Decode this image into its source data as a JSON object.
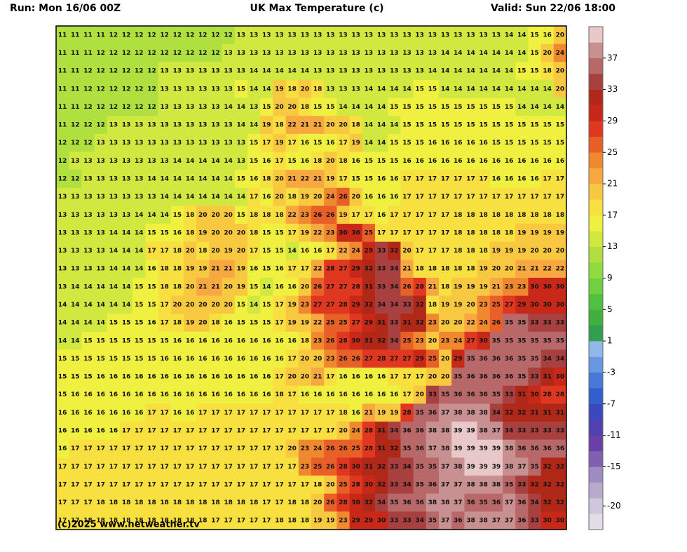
{
  "map": {
    "run": "Run: Mon 16/06 00Z",
    "title": "UK Max Temperature (c)",
    "valid": "Valid: Sun 22/06 18:00",
    "credit": "(c)2025 www.netweather.tv",
    "grid": [
      [
        11,
        11,
        11,
        11,
        12,
        12,
        12,
        12,
        12,
        12,
        12,
        12,
        12,
        12,
        13,
        13,
        13,
        13,
        13,
        13,
        13,
        13,
        13,
        13,
        13,
        13,
        13,
        13,
        13,
        13,
        13,
        13,
        13,
        13,
        13,
        14,
        14,
        15,
        16,
        20
      ],
      [
        11,
        11,
        11,
        12,
        12,
        12,
        12,
        12,
        12,
        12,
        12,
        12,
        12,
        13,
        13,
        13,
        13,
        13,
        13,
        13,
        13,
        13,
        13,
        13,
        13,
        13,
        13,
        13,
        13,
        13,
        14,
        14,
        14,
        14,
        14,
        14,
        14,
        15,
        20,
        24
      ],
      [
        11,
        11,
        12,
        12,
        12,
        12,
        12,
        12,
        13,
        13,
        13,
        13,
        13,
        13,
        13,
        14,
        14,
        14,
        14,
        14,
        13,
        13,
        13,
        13,
        13,
        13,
        13,
        13,
        13,
        14,
        14,
        14,
        14,
        14,
        14,
        14,
        15,
        15,
        18,
        20
      ],
      [
        11,
        11,
        12,
        12,
        12,
        12,
        12,
        12,
        13,
        13,
        13,
        13,
        13,
        13,
        15,
        14,
        14,
        19,
        18,
        20,
        18,
        13,
        13,
        13,
        14,
        14,
        14,
        14,
        15,
        15,
        14,
        14,
        14,
        14,
        14,
        14,
        14,
        14,
        14,
        20
      ],
      [
        11,
        11,
        12,
        12,
        12,
        12,
        12,
        12,
        13,
        13,
        13,
        13,
        13,
        14,
        14,
        13,
        15,
        20,
        20,
        18,
        15,
        15,
        14,
        14,
        14,
        14,
        15,
        15,
        15,
        15,
        15,
        15,
        15,
        15,
        15,
        15,
        14,
        14,
        14,
        14
      ],
      [
        11,
        12,
        12,
        12,
        13,
        13,
        13,
        13,
        13,
        13,
        13,
        13,
        13,
        13,
        14,
        14,
        19,
        18,
        22,
        21,
        21,
        20,
        20,
        18,
        14,
        14,
        14,
        15,
        15,
        15,
        15,
        15,
        15,
        15,
        15,
        15,
        15,
        15,
        15,
        15
      ],
      [
        12,
        12,
        12,
        13,
        13,
        13,
        13,
        13,
        13,
        13,
        13,
        13,
        13,
        13,
        13,
        15,
        17,
        19,
        17,
        16,
        15,
        16,
        17,
        19,
        14,
        14,
        15,
        15,
        15,
        16,
        16,
        16,
        16,
        16,
        15,
        15,
        15,
        15,
        15,
        15
      ],
      [
        12,
        13,
        13,
        13,
        13,
        13,
        13,
        13,
        13,
        14,
        14,
        14,
        14,
        14,
        13,
        15,
        16,
        17,
        15,
        16,
        18,
        20,
        18,
        16,
        15,
        15,
        15,
        16,
        16,
        16,
        16,
        16,
        16,
        16,
        16,
        16,
        16,
        16,
        16,
        16
      ],
      [
        12,
        12,
        13,
        13,
        13,
        13,
        13,
        14,
        14,
        14,
        14,
        14,
        14,
        14,
        15,
        16,
        18,
        20,
        21,
        22,
        21,
        19,
        17,
        15,
        15,
        16,
        16,
        17,
        17,
        17,
        17,
        17,
        17,
        17,
        16,
        16,
        16,
        16,
        17,
        17
      ],
      [
        13,
        13,
        13,
        13,
        13,
        13,
        13,
        13,
        14,
        14,
        14,
        14,
        14,
        14,
        14,
        17,
        16,
        20,
        18,
        19,
        20,
        24,
        26,
        20,
        16,
        16,
        16,
        17,
        17,
        17,
        17,
        17,
        17,
        17,
        17,
        17,
        17,
        17,
        17,
        17
      ],
      [
        13,
        13,
        13,
        13,
        13,
        13,
        14,
        14,
        14,
        15,
        18,
        20,
        20,
        20,
        15,
        18,
        18,
        18,
        22,
        23,
        26,
        26,
        19,
        17,
        17,
        16,
        17,
        17,
        17,
        17,
        17,
        18,
        18,
        18,
        18,
        18,
        18,
        18,
        18,
        18
      ],
      [
        13,
        13,
        13,
        13,
        14,
        14,
        14,
        15,
        15,
        16,
        18,
        19,
        20,
        20,
        20,
        18,
        15,
        15,
        17,
        19,
        22,
        23,
        30,
        30,
        25,
        17,
        17,
        17,
        17,
        17,
        17,
        18,
        18,
        18,
        18,
        18,
        19,
        19,
        19,
        19
      ],
      [
        13,
        13,
        13,
        13,
        14,
        14,
        14,
        17,
        17,
        18,
        20,
        18,
        20,
        19,
        20,
        17,
        15,
        15,
        14,
        16,
        16,
        17,
        22,
        24,
        29,
        33,
        32,
        20,
        17,
        17,
        17,
        18,
        18,
        18,
        19,
        19,
        19,
        20,
        20,
        20
      ],
      [
        13,
        13,
        13,
        13,
        14,
        14,
        14,
        16,
        18,
        18,
        19,
        19,
        21,
        21,
        19,
        16,
        15,
        16,
        17,
        17,
        22,
        28,
        27,
        29,
        32,
        33,
        34,
        21,
        18,
        18,
        18,
        18,
        18,
        19,
        20,
        20,
        21,
        21,
        22,
        22
      ],
      [
        13,
        14,
        14,
        14,
        14,
        14,
        15,
        15,
        18,
        18,
        20,
        21,
        21,
        20,
        19,
        15,
        14,
        16,
        16,
        20,
        26,
        27,
        27,
        28,
        31,
        33,
        34,
        26,
        28,
        21,
        18,
        19,
        19,
        19,
        21,
        23,
        23,
        30,
        30,
        30
      ],
      [
        14,
        14,
        14,
        14,
        14,
        14,
        15,
        15,
        17,
        20,
        20,
        20,
        20,
        20,
        15,
        14,
        15,
        17,
        19,
        23,
        27,
        27,
        28,
        29,
        32,
        34,
        34,
        33,
        32,
        18,
        19,
        19,
        20,
        23,
        25,
        27,
        29,
        30,
        30,
        30
      ],
      [
        14,
        14,
        14,
        14,
        15,
        15,
        15,
        16,
        17,
        18,
        19,
        20,
        18,
        16,
        15,
        15,
        15,
        17,
        19,
        19,
        22,
        25,
        25,
        27,
        29,
        31,
        33,
        31,
        32,
        23,
        20,
        20,
        22,
        24,
        26,
        35,
        35,
        33,
        33,
        33
      ],
      [
        14,
        14,
        15,
        15,
        15,
        15,
        15,
        15,
        15,
        16,
        16,
        16,
        16,
        16,
        16,
        16,
        16,
        16,
        16,
        18,
        23,
        26,
        28,
        30,
        31,
        32,
        34,
        25,
        23,
        20,
        23,
        24,
        27,
        30,
        35,
        35,
        35,
        35,
        35,
        35
      ],
      [
        15,
        15,
        15,
        15,
        15,
        15,
        15,
        15,
        16,
        16,
        16,
        16,
        16,
        16,
        16,
        16,
        16,
        16,
        17,
        20,
        20,
        23,
        26,
        26,
        27,
        28,
        27,
        27,
        29,
        25,
        20,
        29,
        35,
        36,
        36,
        36,
        35,
        35,
        34,
        34
      ],
      [
        15,
        15,
        15,
        16,
        16,
        16,
        16,
        16,
        16,
        16,
        16,
        16,
        16,
        16,
        16,
        16,
        16,
        17,
        20,
        20,
        21,
        17,
        16,
        16,
        16,
        16,
        17,
        17,
        17,
        20,
        20,
        35,
        36,
        36,
        36,
        36,
        35,
        33,
        31,
        30
      ],
      [
        15,
        16,
        16,
        16,
        16,
        16,
        16,
        16,
        16,
        16,
        16,
        16,
        16,
        16,
        16,
        16,
        16,
        18,
        17,
        16,
        16,
        16,
        16,
        16,
        16,
        16,
        16,
        17,
        20,
        33,
        35,
        36,
        36,
        36,
        35,
        33,
        31,
        30,
        28,
        28
      ],
      [
        16,
        16,
        16,
        16,
        16,
        16,
        16,
        17,
        17,
        16,
        16,
        17,
        17,
        17,
        17,
        17,
        17,
        17,
        17,
        17,
        17,
        17,
        18,
        16,
        21,
        19,
        19,
        28,
        35,
        36,
        37,
        38,
        38,
        38,
        34,
        32,
        32,
        31,
        31,
        31
      ],
      [
        16,
        16,
        16,
        16,
        16,
        17,
        17,
        17,
        17,
        17,
        17,
        17,
        17,
        17,
        17,
        17,
        17,
        17,
        17,
        17,
        17,
        17,
        20,
        24,
        28,
        31,
        34,
        36,
        36,
        38,
        38,
        39,
        39,
        38,
        37,
        34,
        33,
        33,
        33,
        33
      ],
      [
        16,
        17,
        17,
        17,
        17,
        17,
        17,
        17,
        17,
        17,
        17,
        17,
        17,
        17,
        17,
        17,
        17,
        17,
        20,
        23,
        24,
        26,
        26,
        25,
        28,
        31,
        32,
        35,
        36,
        37,
        38,
        39,
        39,
        39,
        39,
        38,
        36,
        36,
        36,
        36
      ],
      [
        17,
        17,
        17,
        17,
        17,
        17,
        17,
        17,
        17,
        17,
        17,
        17,
        17,
        17,
        17,
        17,
        17,
        17,
        17,
        23,
        25,
        26,
        28,
        30,
        31,
        32,
        33,
        34,
        35,
        35,
        37,
        38,
        39,
        39,
        39,
        38,
        37,
        35,
        32,
        32
      ],
      [
        17,
        17,
        17,
        17,
        17,
        17,
        17,
        17,
        17,
        17,
        17,
        17,
        17,
        17,
        17,
        17,
        17,
        17,
        17,
        17,
        18,
        20,
        25,
        28,
        30,
        32,
        33,
        34,
        35,
        36,
        37,
        37,
        38,
        38,
        38,
        35,
        33,
        32,
        32,
        32
      ],
      [
        17,
        17,
        17,
        18,
        18,
        18,
        18,
        18,
        18,
        18,
        18,
        18,
        18,
        18,
        18,
        18,
        17,
        17,
        18,
        18,
        20,
        26,
        28,
        30,
        32,
        34,
        35,
        36,
        36,
        38,
        38,
        37,
        36,
        35,
        36,
        37,
        36,
        34,
        32,
        32
      ],
      [
        17,
        17,
        18,
        18,
        18,
        18,
        18,
        18,
        18,
        18,
        18,
        18,
        17,
        17,
        17,
        17,
        17,
        18,
        18,
        18,
        19,
        19,
        23,
        29,
        29,
        30,
        33,
        33,
        34,
        35,
        37,
        36,
        38,
        38,
        37,
        37,
        36,
        33,
        30,
        30
      ]
    ],
    "colorbar": {
      "ylim": [
        -23,
        41
      ],
      "step": 2,
      "yticks": [
        37,
        33,
        29,
        25,
        21,
        17,
        13,
        9,
        5,
        1,
        -3,
        -7,
        -11,
        -15,
        -20
      ],
      "colors": [
        "#e0dce8",
        "#cfc8dc",
        "#b8aacc",
        "#9e8cc0",
        "#8060b0",
        "#6a40a8",
        "#5040b0",
        "#3c48c0",
        "#3060d0",
        "#4878d8",
        "#6898e0",
        "#90b8e8",
        "#30a050",
        "#40b040",
        "#50c040",
        "#70d040",
        "#90dc40",
        "#b0e040",
        "#d0e840",
        "#f0f040",
        "#f8e040",
        "#f8c840",
        "#f8a840",
        "#f08830",
        "#e86028",
        "#e03820",
        "#c82818",
        "#b02818",
        "#a84040",
        "#b86868",
        "#c89090",
        "#e8c8c8"
      ]
    }
  }
}
